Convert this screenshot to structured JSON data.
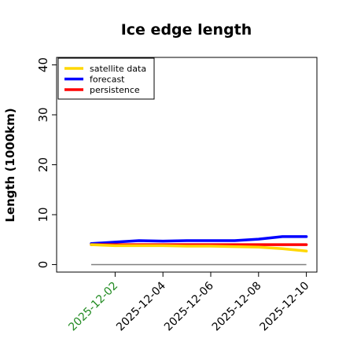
{
  "chart_data": {
    "type": "line",
    "title": "Ice edge length",
    "xlabel": "",
    "ylabel": "Length (1000km)",
    "x": [
      "2025-12-01",
      "2025-12-02",
      "2025-12-03",
      "2025-12-04",
      "2025-12-05",
      "2025-12-06",
      "2025-12-07",
      "2025-12-08",
      "2025-12-09",
      "2025-12-10"
    ],
    "xticks": [
      "2025-12-02",
      "2025-12-04",
      "2025-12-06",
      "2025-12-08",
      "2025-12-10"
    ],
    "xtick_colors": [
      "#228b22",
      "#000000",
      "#000000",
      "#000000",
      "#000000"
    ],
    "yticks": [
      "0",
      "10",
      "20",
      "30",
      "40"
    ],
    "ylim": [
      -1.5,
      41.5
    ],
    "grid": false,
    "legend_position": "top-left",
    "series": [
      {
        "name": "satellite data",
        "color": "#ffd700",
        "values": [
          4.0,
          3.8,
          3.8,
          3.8,
          3.7,
          3.7,
          3.6,
          3.5,
          3.2,
          2.7
        ]
      },
      {
        "name": "forecast",
        "color": "#0000ff",
        "values": [
          4.2,
          4.5,
          4.8,
          4.7,
          4.8,
          4.8,
          4.8,
          5.1,
          5.6,
          5.6
        ]
      },
      {
        "name": "persistence",
        "color": "#ff0000",
        "values": [
          4.0,
          4.0,
          4.0,
          4.0,
          4.0,
          4.0,
          4.0,
          4.0,
          4.0,
          4.0
        ]
      }
    ],
    "reference_line": {
      "value": 0,
      "color": "#808080"
    }
  }
}
